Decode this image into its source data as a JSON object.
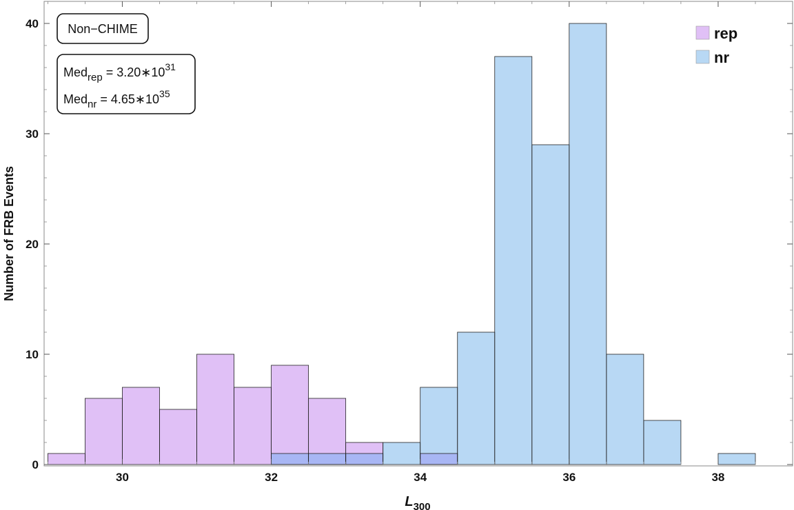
{
  "chart_data": {
    "type": "bar",
    "xlabel": "L",
    "xlabel_sub": "300",
    "ylabel": "Number of FRB Events",
    "xlim": [
      28.95,
      39.0
    ],
    "ylim": [
      0,
      42
    ],
    "xticks": [
      30,
      32,
      34,
      36,
      38
    ],
    "xtick_labels": [
      "30",
      "32",
      "34",
      "36",
      "38"
    ],
    "yticks": [
      0,
      10,
      20,
      30,
      40
    ],
    "ytick_labels": [
      "0",
      "10",
      "20",
      "30",
      "40"
    ],
    "bin_width": 0.5,
    "legend_position": "top-right",
    "series": [
      {
        "name": "rep",
        "color": "#e0c0f6",
        "bins": [
          {
            "x0": 29.0,
            "count": 1
          },
          {
            "x0": 29.5,
            "count": 6
          },
          {
            "x0": 30.0,
            "count": 7
          },
          {
            "x0": 30.5,
            "count": 5
          },
          {
            "x0": 31.0,
            "count": 10
          },
          {
            "x0": 31.5,
            "count": 7
          },
          {
            "x0": 32.0,
            "count": 9
          },
          {
            "x0": 32.5,
            "count": 6
          },
          {
            "x0": 33.0,
            "count": 2
          },
          {
            "x0": 34.0,
            "count": 1
          }
        ]
      },
      {
        "name": "nr",
        "color": "#b8d8f4",
        "bins": [
          {
            "x0": 32.0,
            "count": 1
          },
          {
            "x0": 32.5,
            "count": 1
          },
          {
            "x0": 33.0,
            "count": 1
          },
          {
            "x0": 33.5,
            "count": 2
          },
          {
            "x0": 34.0,
            "count": 7
          },
          {
            "x0": 34.5,
            "count": 12
          },
          {
            "x0": 35.0,
            "count": 37
          },
          {
            "x0": 35.5,
            "count": 29
          },
          {
            "x0": 36.0,
            "count": 40
          },
          {
            "x0": 36.5,
            "count": 10
          },
          {
            "x0": 37.0,
            "count": 4
          },
          {
            "x0": 38.0,
            "count": 1
          }
        ]
      }
    ],
    "overlap_color": "#a8b6f4",
    "annotations": {
      "label_box": "Non−CHIME",
      "median_rep": {
        "prefix": "Med",
        "sub": "rep",
        "value": " = 3.20∗",
        "base": "10",
        "exp": "31"
      },
      "median_nr": {
        "prefix": "Med",
        "sub": "nr",
        "value": " = 4.65∗",
        "base": "10",
        "exp": "35"
      }
    }
  }
}
